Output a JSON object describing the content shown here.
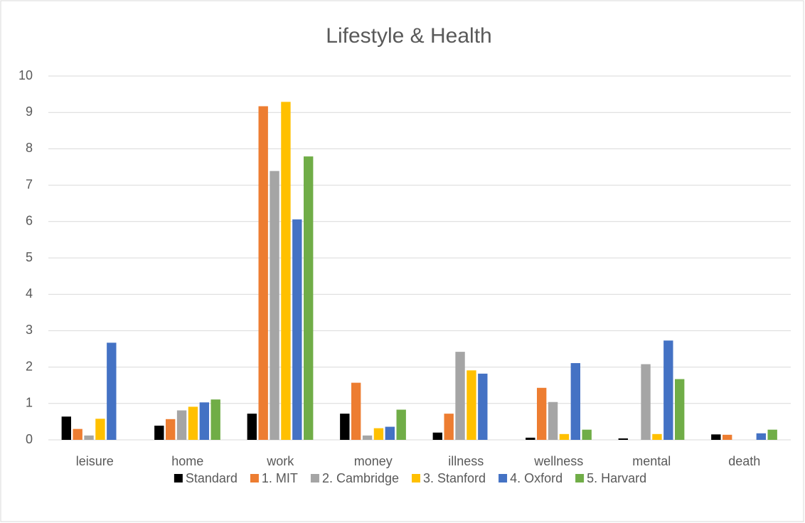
{
  "chart_data": {
    "type": "bar",
    "title": "Lifestyle & Health",
    "categories": [
      "leisure",
      "home",
      "work",
      "money",
      "illness",
      "wellness",
      "mental",
      "death"
    ],
    "series": [
      {
        "name": "Standard",
        "color": "#000000",
        "values": [
          0.64,
          0.39,
          0.72,
          0.72,
          0.2,
          0.06,
          0.04,
          0.15
        ]
      },
      {
        "name": "1. MIT",
        "color": "#ed7d31",
        "values": [
          0.3,
          0.57,
          9.17,
          1.57,
          0.72,
          1.43,
          0,
          0.14
        ]
      },
      {
        "name": "2. Cambridge",
        "color": "#a5a5a5",
        "values": [
          0.12,
          0.81,
          7.39,
          0.12,
          2.42,
          1.04,
          2.08,
          0
        ]
      },
      {
        "name": "3. Stanford",
        "color": "#ffc000",
        "values": [
          0.58,
          0.91,
          9.29,
          0.32,
          1.91,
          0.16,
          0.16,
          0
        ]
      },
      {
        "name": "4. Oxford",
        "color": "#4472c4",
        "values": [
          2.67,
          1.03,
          6.06,
          0.36,
          1.82,
          2.11,
          2.73,
          0.18
        ]
      },
      {
        "name": "5. Harvard",
        "color": "#70ad47",
        "values": [
          0,
          1.11,
          7.79,
          0.83,
          0,
          0.28,
          1.67,
          0.28
        ]
      }
    ],
    "ylim": [
      0,
      10
    ],
    "yticks": [
      0,
      1,
      2,
      3,
      4,
      5,
      6,
      7,
      8,
      9,
      10
    ],
    "grid": true,
    "legend": "bottom"
  }
}
